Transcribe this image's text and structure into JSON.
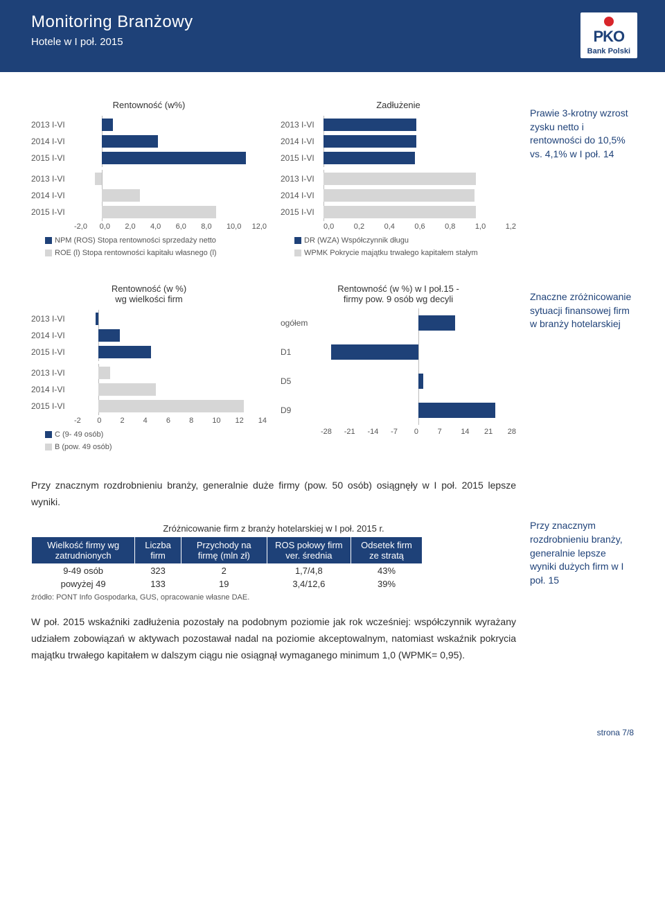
{
  "header": {
    "title": "Monitoring Branżowy",
    "subtitle": "Hotele w I poł. 2015",
    "logo_pko": "PKO",
    "logo_bank": "Bank Polski"
  },
  "chart1": {
    "title": "Rentowność (w%)",
    "categories": [
      "2013 I-VI",
      "2014 I-VI",
      "2015 I-VI",
      "2013 I-VI",
      "2014 I-VI",
      "2015 I-VI"
    ],
    "series1_values": [
      0.8,
      4.1,
      10.5,
      null,
      null,
      null
    ],
    "series2_values": [
      null,
      null,
      null,
      -0.5,
      2.8,
      8.3
    ],
    "xmin": -2.0,
    "xmax": 12.0,
    "xticks": [
      "-2,0",
      "0,0",
      "2,0",
      "4,0",
      "6,0",
      "8,0",
      "10,0",
      "12,0"
    ],
    "series1_color": "#1e4178",
    "series2_color": "#d6d6d6",
    "legend1": "NPM (ROS) Stopa rentowności sprzedaży netto",
    "legend2": "ROE (l) Stopa rentowności kapitału własnego (l)",
    "gap_after": 2
  },
  "chart2": {
    "title": "Zadłużenie",
    "categories": [
      "2013 I-VI",
      "2014 I-VI",
      "2015 I-VI",
      "2013 I-VI",
      "2014 I-VI",
      "2015 I-VI"
    ],
    "series1_values": [
      0.58,
      0.58,
      0.57,
      null,
      null,
      null
    ],
    "series2_values": [
      null,
      null,
      null,
      0.95,
      0.94,
      0.95
    ],
    "xmin": 0.0,
    "xmax": 1.2,
    "xticks": [
      "0,0",
      "0,2",
      "0,4",
      "0,6",
      "0,8",
      "1,0",
      "1,2"
    ],
    "series1_color": "#1e4178",
    "series2_color": "#d6d6d6",
    "legend1": "DR (WZA) Współczynnik długu",
    "legend2": "WPMK Pokrycie majątku trwałego kapitałem stałym",
    "gap_after": 2
  },
  "callout1": "Prawie 3-krotny wzrost zysku netto i rentowności do 10,5% vs. 4,1% w I poł. 14",
  "chart3": {
    "title": "Rentowność (w %)\nwg wielkości firm",
    "categories": [
      "2013 I-VI",
      "2014 I-VI",
      "2015 I-VI",
      "2013 I-VI",
      "2014 I-VI",
      "2015 I-VI"
    ],
    "series1_values": [
      -0.2,
      1.8,
      4.4,
      null,
      null,
      null
    ],
    "series2_values": [
      null,
      null,
      null,
      1.0,
      4.8,
      12.1
    ],
    "xmin": -2,
    "xmax": 14,
    "xticks": [
      "-2",
      "0",
      "2",
      "4",
      "6",
      "8",
      "10",
      "12",
      "14"
    ],
    "series1_color": "#1e4178",
    "series2_color": "#d6d6d6",
    "legend1": "C (9- 49 osób)",
    "legend2": "B (pow. 49 osób)",
    "gap_after": 2
  },
  "chart4": {
    "title": "Rentowność (w %) w I poł.15 -\nfirmy pow. 9 osób wg decyli",
    "categories": [
      "ogółem",
      "D1",
      "D5",
      "D9"
    ],
    "values": [
      10.5,
      -25.0,
      1.3,
      22.0
    ],
    "xmin": -28,
    "xmax": 28,
    "xticks": [
      "-28",
      "-21",
      "-14",
      "-7",
      "0",
      "7",
      "14",
      "21",
      "28"
    ],
    "color": "#1e4178"
  },
  "callout2": "Znaczne zróżnicowanie sytuacji finansowej firm w branży hotelarskiej",
  "para1": "Przy znacznym rozdrobnieniu branży, generalnie duże firmy (pow. 50 osób) osiągnęły w I poł. 2015 lepsze wyniki.",
  "table": {
    "title": "Zróżnicowanie firm z branży hotelarskiej w I poł. 2015 r.",
    "columns": [
      "Wielkość  firmy wg zatrudnionych",
      "Liczba firm",
      "Przychody na firmę (mln zł)",
      "ROS połowy firm ver. średnia",
      "Odsetek firm ze stratą"
    ],
    "rows": [
      [
        "9-49 osób",
        "323",
        "2",
        "1,7/4,8",
        "43%"
      ],
      [
        "powyżej 49",
        "133",
        "19",
        "3,4/12,6",
        "39%"
      ]
    ],
    "source": "źródło: PONT Info Gospodarka, GUS, opracowanie własne DAE."
  },
  "callout3": "Przy znacznym rozdrobnieniu branży, generalnie lepsze wyniki dużych firm w I poł. 15",
  "para2": "W poł. 2015 wskaźniki zadłużenia pozostały na podobnym poziomie jak rok wcześniej: współczynnik wyrażany udziałem zobowiązań w aktywach pozostawał nadal na poziomie akceptowalnym, natomiast wskaźnik pokrycia majątku trwałego kapitałem w dalszym ciągu nie osiągnął wymaganego minimum 1,0 (WPMK= 0,95).",
  "footer": "strona 7/8"
}
